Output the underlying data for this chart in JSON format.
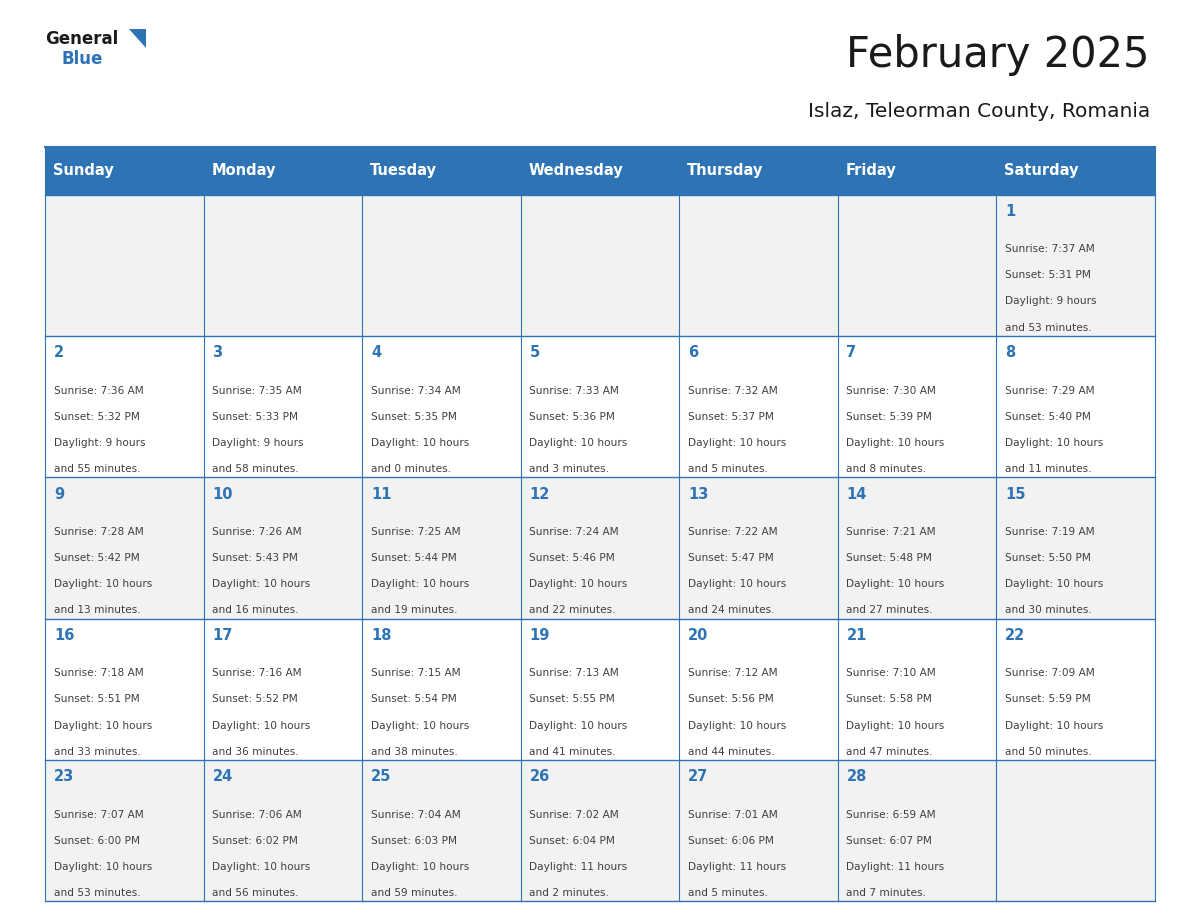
{
  "title": "February 2025",
  "subtitle": "Islaz, Teleorman County, Romania",
  "header_bg": "#2E74B5",
  "header_text_color": "#FFFFFF",
  "cell_bg_white": "#FFFFFF",
  "cell_bg_light": "#F2F2F2",
  "border_color": "#2E74B5",
  "day_number_color": "#2E74B5",
  "text_color": "#404040",
  "days_of_week": [
    "Sunday",
    "Monday",
    "Tuesday",
    "Wednesday",
    "Thursday",
    "Friday",
    "Saturday"
  ],
  "calendar_data": [
    [
      null,
      null,
      null,
      null,
      null,
      null,
      {
        "day": "1",
        "sunrise": "7:37 AM",
        "sunset": "5:31 PM",
        "daylight_h": "9 hours",
        "daylight_m": "and 53 minutes."
      }
    ],
    [
      {
        "day": "2",
        "sunrise": "7:36 AM",
        "sunset": "5:32 PM",
        "daylight_h": "9 hours",
        "daylight_m": "and 55 minutes."
      },
      {
        "day": "3",
        "sunrise": "7:35 AM",
        "sunset": "5:33 PM",
        "daylight_h": "9 hours",
        "daylight_m": "and 58 minutes."
      },
      {
        "day": "4",
        "sunrise": "7:34 AM",
        "sunset": "5:35 PM",
        "daylight_h": "10 hours",
        "daylight_m": "and 0 minutes."
      },
      {
        "day": "5",
        "sunrise": "7:33 AM",
        "sunset": "5:36 PM",
        "daylight_h": "10 hours",
        "daylight_m": "and 3 minutes."
      },
      {
        "day": "6",
        "sunrise": "7:32 AM",
        "sunset": "5:37 PM",
        "daylight_h": "10 hours",
        "daylight_m": "and 5 minutes."
      },
      {
        "day": "7",
        "sunrise": "7:30 AM",
        "sunset": "5:39 PM",
        "daylight_h": "10 hours",
        "daylight_m": "and 8 minutes."
      },
      {
        "day": "8",
        "sunrise": "7:29 AM",
        "sunset": "5:40 PM",
        "daylight_h": "10 hours",
        "daylight_m": "and 11 minutes."
      }
    ],
    [
      {
        "day": "9",
        "sunrise": "7:28 AM",
        "sunset": "5:42 PM",
        "daylight_h": "10 hours",
        "daylight_m": "and 13 minutes."
      },
      {
        "day": "10",
        "sunrise": "7:26 AM",
        "sunset": "5:43 PM",
        "daylight_h": "10 hours",
        "daylight_m": "and 16 minutes."
      },
      {
        "day": "11",
        "sunrise": "7:25 AM",
        "sunset": "5:44 PM",
        "daylight_h": "10 hours",
        "daylight_m": "and 19 minutes."
      },
      {
        "day": "12",
        "sunrise": "7:24 AM",
        "sunset": "5:46 PM",
        "daylight_h": "10 hours",
        "daylight_m": "and 22 minutes."
      },
      {
        "day": "13",
        "sunrise": "7:22 AM",
        "sunset": "5:47 PM",
        "daylight_h": "10 hours",
        "daylight_m": "and 24 minutes."
      },
      {
        "day": "14",
        "sunrise": "7:21 AM",
        "sunset": "5:48 PM",
        "daylight_h": "10 hours",
        "daylight_m": "and 27 minutes."
      },
      {
        "day": "15",
        "sunrise": "7:19 AM",
        "sunset": "5:50 PM",
        "daylight_h": "10 hours",
        "daylight_m": "and 30 minutes."
      }
    ],
    [
      {
        "day": "16",
        "sunrise": "7:18 AM",
        "sunset": "5:51 PM",
        "daylight_h": "10 hours",
        "daylight_m": "and 33 minutes."
      },
      {
        "day": "17",
        "sunrise": "7:16 AM",
        "sunset": "5:52 PM",
        "daylight_h": "10 hours",
        "daylight_m": "and 36 minutes."
      },
      {
        "day": "18",
        "sunrise": "7:15 AM",
        "sunset": "5:54 PM",
        "daylight_h": "10 hours",
        "daylight_m": "and 38 minutes."
      },
      {
        "day": "19",
        "sunrise": "7:13 AM",
        "sunset": "5:55 PM",
        "daylight_h": "10 hours",
        "daylight_m": "and 41 minutes."
      },
      {
        "day": "20",
        "sunrise": "7:12 AM",
        "sunset": "5:56 PM",
        "daylight_h": "10 hours",
        "daylight_m": "and 44 minutes."
      },
      {
        "day": "21",
        "sunrise": "7:10 AM",
        "sunset": "5:58 PM",
        "daylight_h": "10 hours",
        "daylight_m": "and 47 minutes."
      },
      {
        "day": "22",
        "sunrise": "7:09 AM",
        "sunset": "5:59 PM",
        "daylight_h": "10 hours",
        "daylight_m": "and 50 minutes."
      }
    ],
    [
      {
        "day": "23",
        "sunrise": "7:07 AM",
        "sunset": "6:00 PM",
        "daylight_h": "10 hours",
        "daylight_m": "and 53 minutes."
      },
      {
        "day": "24",
        "sunrise": "7:06 AM",
        "sunset": "6:02 PM",
        "daylight_h": "10 hours",
        "daylight_m": "and 56 minutes."
      },
      {
        "day": "25",
        "sunrise": "7:04 AM",
        "sunset": "6:03 PM",
        "daylight_h": "10 hours",
        "daylight_m": "and 59 minutes."
      },
      {
        "day": "26",
        "sunrise": "7:02 AM",
        "sunset": "6:04 PM",
        "daylight_h": "11 hours",
        "daylight_m": "and 2 minutes."
      },
      {
        "day": "27",
        "sunrise": "7:01 AM",
        "sunset": "6:06 PM",
        "daylight_h": "11 hours",
        "daylight_m": "and 5 minutes."
      },
      {
        "day": "28",
        "sunrise": "6:59 AM",
        "sunset": "6:07 PM",
        "daylight_h": "11 hours",
        "daylight_m": "and 7 minutes."
      },
      null
    ]
  ],
  "figsize": [
    11.88,
    9.18
  ],
  "dpi": 100
}
